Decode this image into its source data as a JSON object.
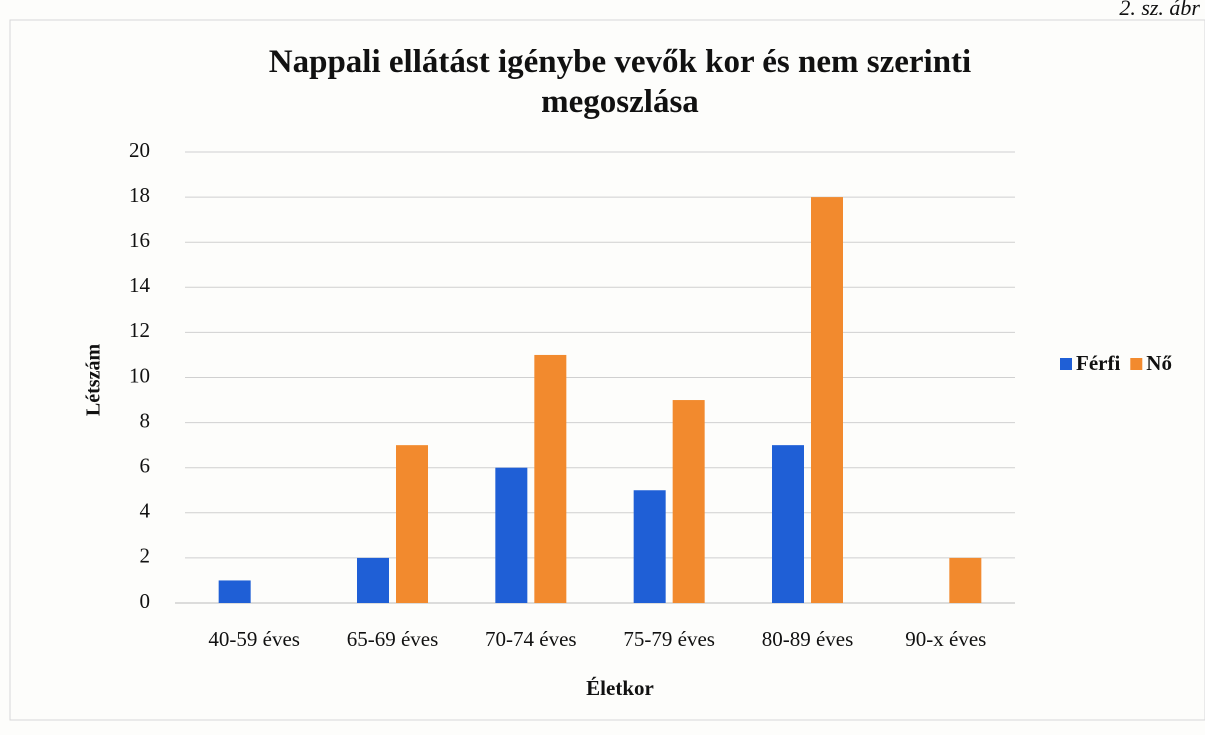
{
  "chart_data": {
    "type": "bar",
    "corner_note": "2. sz. ábr",
    "title": "Nappali ellátást igénybe vevők kor és nem szerinti megoszlása",
    "y_label": "Létszám",
    "x_label": "Életkor",
    "categories": [
      "40-59 éves",
      "65-69 éves",
      "70-74 éves",
      "75-79 éves",
      "80-89 éves",
      "90-x éves"
    ],
    "series": [
      {
        "name": "Férfi",
        "color": "#1f5fd6",
        "values": [
          1,
          2,
          6,
          5,
          7,
          0
        ]
      },
      {
        "name": "Nő",
        "color": "#f28a2e",
        "values": [
          0,
          7,
          11,
          9,
          18,
          2
        ]
      }
    ],
    "ylim": [
      0,
      20
    ],
    "yticks": [
      0,
      2,
      4,
      6,
      8,
      10,
      12,
      14,
      16,
      18,
      20
    ],
    "grid": true,
    "legend": "right"
  }
}
